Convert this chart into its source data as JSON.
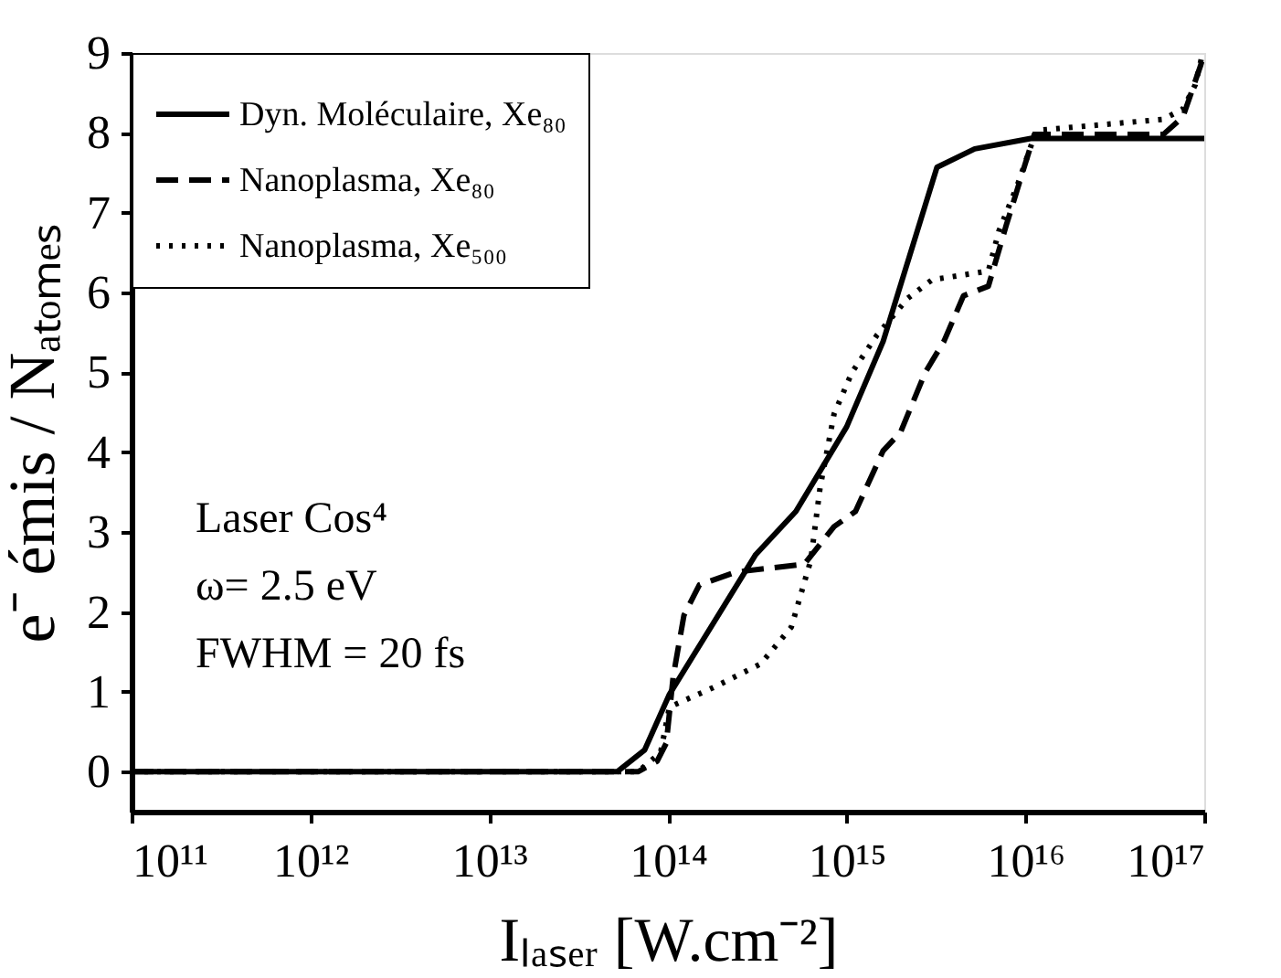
{
  "chart_data": {
    "type": "line",
    "xlabel": "Iₗₐₛₑᵣ [W.cm⁻²]",
    "ylabel": "e⁻ émis / Nₐₜₒₘₑₛ",
    "log": "x",
    "xlim": [
      100000000000.0,
      1e+17
    ],
    "ylim": [
      -0.5,
      9
    ],
    "xticks": [
      {
        "value": 100000000000.0,
        "label": "10¹¹"
      },
      {
        "value": 1000000000000.0,
        "label": "10¹²"
      },
      {
        "value": 10000000000000.0,
        "label": "10¹³"
      },
      {
        "value": 100000000000000.0,
        "label": "10¹⁴"
      },
      {
        "value": 1000000000000000.0,
        "label": "10¹⁵"
      },
      {
        "value": 1e+16,
        "label": "10¹⁶"
      },
      {
        "value": 1e+17,
        "label": "10¹⁷"
      }
    ],
    "yticks": [
      0,
      1,
      2,
      3,
      4,
      5,
      6,
      7,
      8,
      9
    ],
    "grid": false,
    "legend": "top left",
    "marker": "none",
    "annotations": [
      "Laser Cos⁴",
      "ω= 2.5 eV",
      "FWHM = 20 fs"
    ],
    "series": [
      {
        "name": "Dyn. Moléculaire, Xe₈₀",
        "color": "#000000",
        "line_style": "solid",
        "x": [
          100000000000.0,
          52000000000000.0,
          74000000000000.0,
          102000000000000.0,
          310000000000000.0,
          520000000000000.0,
          1000000000000000.0,
          1600000000000000.0,
          3200000000000000.0,
          5200000000000000.0,
          1.07e+16,
          1e+17
        ],
        "values": [
          0,
          0,
          0.27,
          0.97,
          2.72,
          3.26,
          4.32,
          5.39,
          7.57,
          7.8,
          7.93,
          7.93
        ]
      },
      {
        "name": "Nanoplasma, Xe₈₀",
        "color": "#000000",
        "line_style": "dashed",
        "x": [
          100000000000.0,
          68000000000000.0,
          87000000000000.0,
          98000000000000.0,
          107000000000000.0,
          123000000000000.0,
          150000000000000.0,
          240000000000000.0,
          580000000000000.0,
          850000000000000.0,
          1120000000000000.0,
          1600000000000000.0,
          2000000000000000.0,
          2750000000000000.0,
          3500000000000000.0,
          4500000000000000.0,
          6200000000000000.0,
          7800000000000000.0,
          1.12e+16,
          5.9e+16,
          7.6e+16,
          9.5e+16,
          1e+17
        ],
        "values": [
          0,
          0,
          0.13,
          0.36,
          1.19,
          1.96,
          2.34,
          2.5,
          2.6,
          3.07,
          3.26,
          4.02,
          4.25,
          5.0,
          5.39,
          5.96,
          6.08,
          6.84,
          7.98,
          7.98,
          8.2,
          8.83,
          9.0
        ]
      },
      {
        "name": "Nanoplasma, Xe₅₀₀",
        "color": "#000000",
        "line_style": "dotted",
        "x": [
          100000000000.0,
          68000000000000.0,
          91000000000000.0,
          102000000000000.0,
          178000000000000.0,
          330000000000000.0,
          490000000000000.0,
          630000000000000.0,
          710000000000000.0,
          850000000000000.0,
          1070000000000000.0,
          1480000000000000.0,
          2200000000000000.0,
          3000000000000000.0,
          6200000000000000.0,
          7100000000000000.0,
          9100000000000000.0,
          1.15e+16,
          5.9e+16,
          7.6e+16,
          8.9e+16,
          9.8e+16
        ],
        "values": [
          0,
          0,
          0.24,
          0.81,
          1.05,
          1.35,
          1.81,
          2.65,
          3.56,
          4.48,
          5.0,
          5.47,
          5.93,
          6.16,
          6.27,
          6.77,
          7.37,
          8.03,
          8.17,
          8.3,
          8.6,
          9.0
        ]
      }
    ]
  }
}
